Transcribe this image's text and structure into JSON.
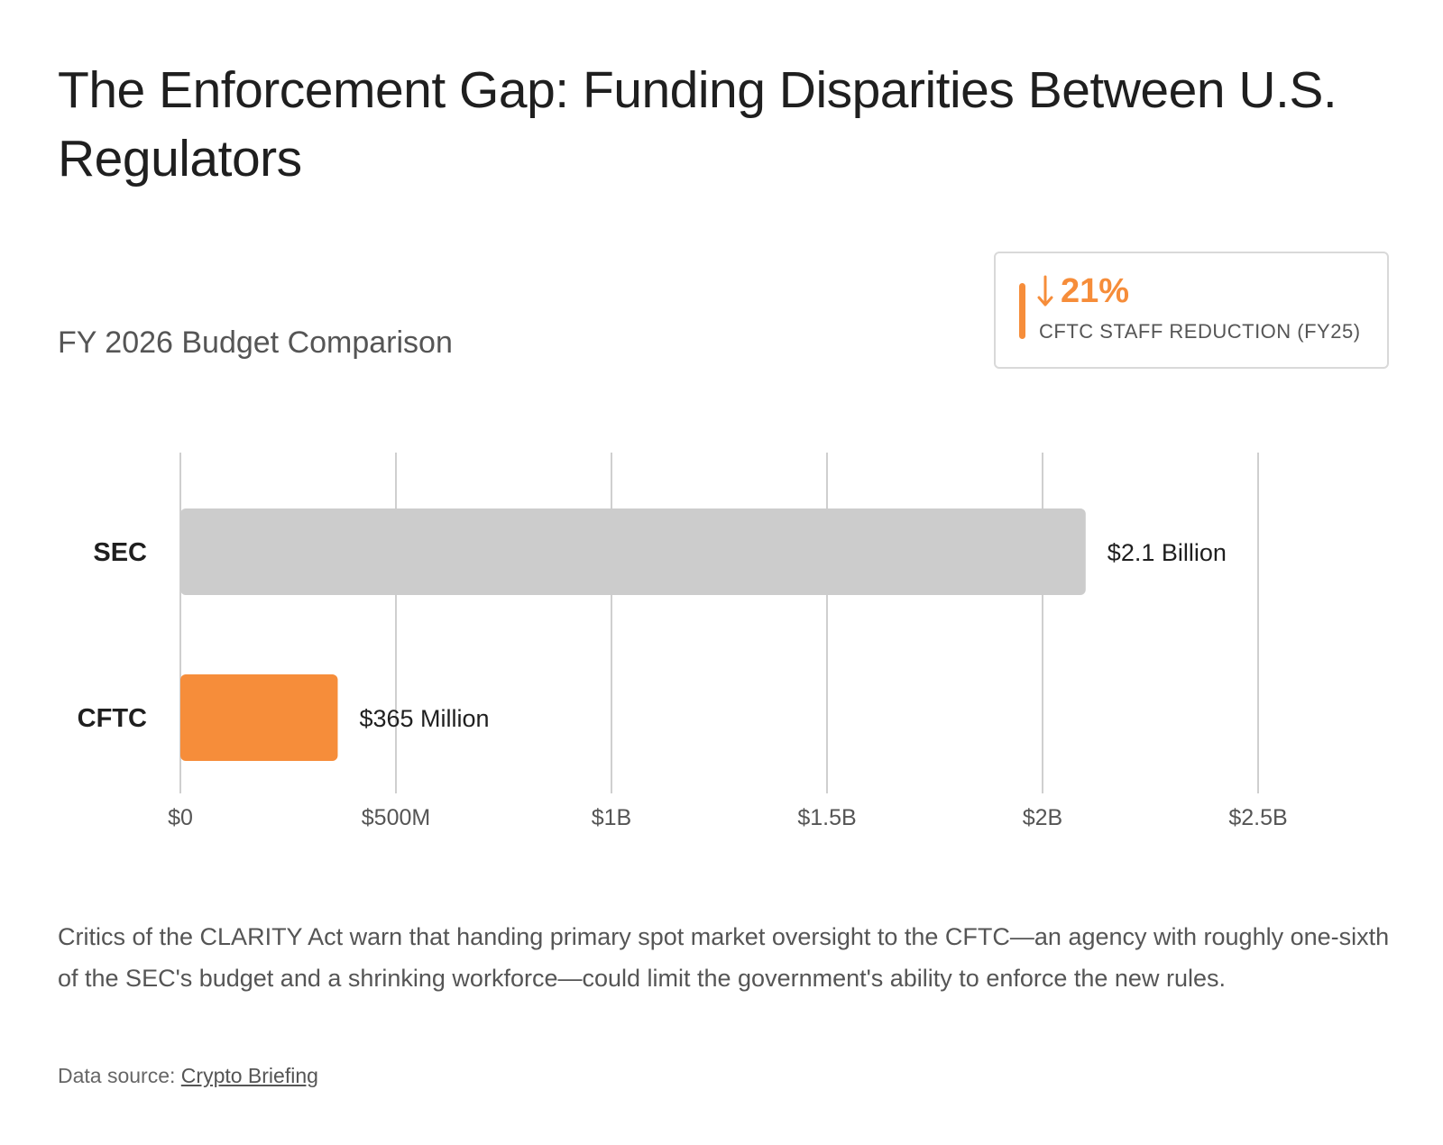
{
  "title": "The Enforcement Gap: Funding Disparities Between U.S. Regulators",
  "subtitle": "FY 2026 Budget Comparison",
  "stat": {
    "value": "21%",
    "direction": "down",
    "icon": "arrow-down-icon",
    "label": "CFTC STAFF REDUCTION (FY25)",
    "color": "#f68d3a"
  },
  "chart_data": {
    "type": "bar",
    "orientation": "horizontal",
    "categories": [
      "SEC",
      "CFTC"
    ],
    "values": [
      2100000000,
      365000000
    ],
    "value_labels": [
      "$2.1 Billion",
      "$365 Million"
    ],
    "colors": [
      "#cccccc",
      "#f68d3a"
    ],
    "xlim": [
      0,
      2500000000
    ],
    "x_ticks": [
      0,
      500000000,
      1000000000,
      1500000000,
      2000000000,
      2500000000
    ],
    "x_tick_labels": [
      "$0",
      "$500M",
      "$1B",
      "$1.5B",
      "$2B",
      "$2.5B"
    ],
    "grid": true
  },
  "caption": "Critics of the CLARITY Act warn that handing primary spot market oversight to the CFTC—an agency with roughly one-sixth of the SEC's budget and a shrinking workforce—could limit the government's ability to enforce the new rules.",
  "source": {
    "prefix": "Data source:",
    "link_text": "Crypto Briefing"
  }
}
